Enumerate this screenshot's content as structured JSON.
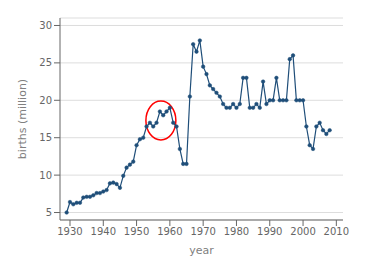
{
  "chart_data": {
    "type": "line",
    "xlabel": "year",
    "ylabel": "births (million)",
    "x": [
      1929,
      1930,
      1931,
      1932,
      1933,
      1934,
      1935,
      1936,
      1937,
      1938,
      1939,
      1940,
      1941,
      1942,
      1943,
      1944,
      1945,
      1946,
      1947,
      1948,
      1949,
      1950,
      1951,
      1952,
      1953,
      1954,
      1955,
      1956,
      1957,
      1958,
      1959,
      1960,
      1961,
      1962,
      1963,
      1964,
      1965,
      1966,
      1967,
      1968,
      1969,
      1970,
      1971,
      1972,
      1973,
      1974,
      1975,
      1976,
      1977,
      1978,
      1979,
      1980,
      1981,
      1982,
      1983,
      1984,
      1985,
      1986,
      1987,
      1988,
      1989,
      1990,
      1991,
      1992,
      1993,
      1994,
      1995,
      1996,
      1997,
      1998,
      1999,
      2000,
      2001,
      2002,
      2003,
      2004,
      2005,
      2006,
      2007,
      2008
    ],
    "values": [
      5.0,
      6.4,
      6.1,
      6.3,
      6.3,
      7.0,
      7.1,
      7.1,
      7.3,
      7.6,
      7.6,
      7.8,
      8.0,
      8.9,
      9.0,
      8.8,
      8.3,
      9.9,
      11.0,
      11.4,
      11.8,
      14.0,
      14.8,
      15.0,
      16.5,
      17.0,
      16.5,
      17.0,
      18.5,
      18.0,
      18.5,
      19.0,
      17.0,
      16.5,
      13.5,
      11.5,
      11.5,
      20.5,
      27.5,
      26.5,
      28.0,
      24.5,
      23.5,
      22.0,
      21.5,
      21.0,
      20.5,
      19.5,
      19.0,
      19.0,
      19.5,
      19.0,
      19.5,
      23.0,
      23.0,
      19.0,
      19.0,
      19.5,
      19.0,
      22.5,
      19.5,
      20.0,
      20.0,
      23.0,
      20.0,
      20.0,
      20.0,
      25.5,
      26.0,
      20.0,
      20.0,
      20.0,
      16.5,
      14.0,
      13.5,
      16.5,
      17.0,
      16.0,
      15.5,
      16.0
    ],
    "color": "#1f4e79",
    "marker": "circle",
    "xlim": [
      1927,
      2012
    ],
    "ylim": [
      4,
      31
    ],
    "xticks": [
      1930,
      1940,
      1950,
      1960,
      1970,
      1980,
      1990,
      2000,
      2010
    ],
    "yticks": [
      5,
      10,
      15,
      20,
      25,
      30
    ],
    "grid": true,
    "ellipse": {
      "x": 1957.3,
      "y": 17.3,
      "width": 9.0,
      "height": 5.2,
      "color": "red"
    }
  }
}
